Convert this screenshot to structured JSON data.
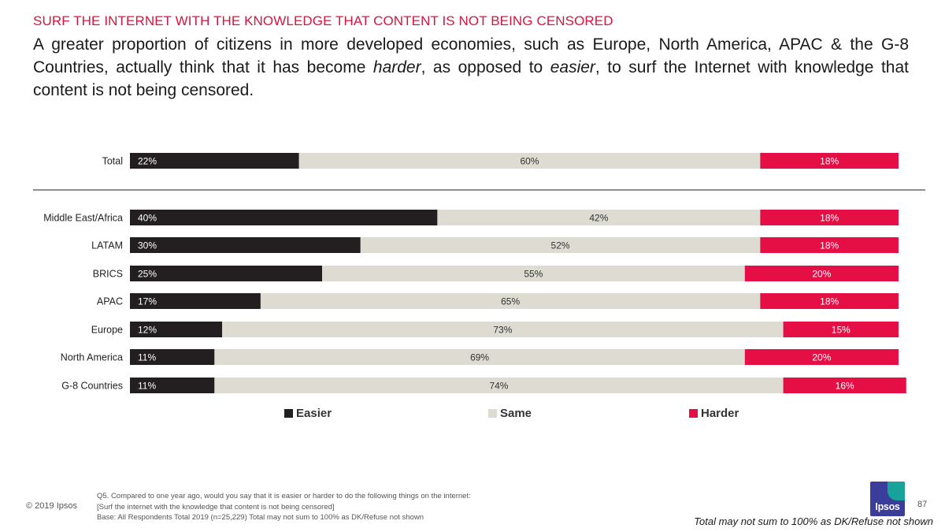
{
  "header": {
    "kicker": "SURF THE INTERNET WITH THE KNOWLEDGE THAT CONTENT IS NOT BEING CENSORED",
    "headline_part1": "A greater proportion of citizens in more developed economies, such as Europe, North America, APAC & the G-8 Countries, actually think that it has become ",
    "headline_em1": "harder",
    "headline_part2": ", as opposed to ",
    "headline_em2": "easier",
    "headline_part3": ", to surf the Internet with knowledge that content is not being censored."
  },
  "chart_data": {
    "type": "bar",
    "orientation": "horizontal",
    "stacked": true,
    "unit": "%",
    "categories": [
      "Total",
      "Middle East/Africa",
      "LATAM",
      "BRICS",
      "APAC",
      "Europe",
      "North America",
      "G-8 Countries"
    ],
    "series": [
      {
        "name": "Easier",
        "color": "#231f20",
        "label_color": "#ffffff",
        "values": [
          22,
          40,
          30,
          25,
          17,
          12,
          11,
          11
        ]
      },
      {
        "name": "Same",
        "color": "#dddbd2",
        "label_color": "#333333",
        "values": [
          60,
          42,
          52,
          55,
          65,
          73,
          69,
          74
        ]
      },
      {
        "name": "Harder",
        "color": "#e50e45",
        "label_color": "#ffffff",
        "values": [
          18,
          18,
          18,
          20,
          18,
          15,
          20,
          16
        ]
      }
    ],
    "xlim": [
      0,
      100
    ],
    "separator_after_category": "Total",
    "legend_position": "bottom"
  },
  "footer": {
    "copyright": "© 2019 Ipsos",
    "question_line1": "Q5. Compared to one year ago, would you say that it is easier or harder to do the following things on the internet:",
    "question_line2": "[Surf the internet with the knowledge that content is not being censored]",
    "base_line": "Base: All Respondents Total 2019 (n=25,229) Total may not sum to 100% as DK/Refuse not shown",
    "logo_text": "Ipsos",
    "page_number": "87",
    "disclaimer": "Total may not sum to 100% as DK/Refuse not shown"
  }
}
